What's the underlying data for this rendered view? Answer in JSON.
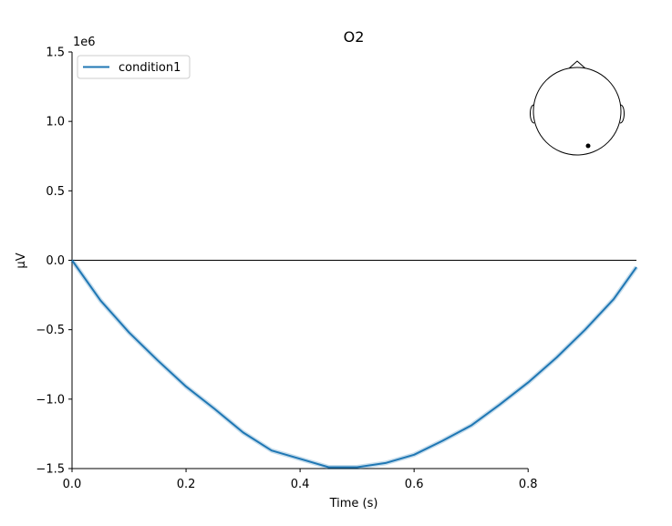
{
  "chart_data": {
    "type": "line",
    "title": "O2",
    "xlabel": "Time (s)",
    "ylabel": "µV",
    "y_offset_label": "1e6",
    "xlim": [
      0.0,
      0.99
    ],
    "ylim": [
      -1.5,
      1.5
    ],
    "xticks": [
      0.0,
      0.2,
      0.4,
      0.6,
      0.8
    ],
    "xtick_labels": [
      "0.0",
      "0.2",
      "0.4",
      "0.6",
      "0.8"
    ],
    "yticks": [
      1.5,
      1.0,
      0.5,
      0.0,
      -0.5,
      -1.0,
      -1.5
    ],
    "ytick_labels": [
      "1.5",
      "1.0",
      "0.5",
      "0.0",
      "−0.5",
      "−1.0",
      "−1.5"
    ],
    "legend_position": "top-left",
    "series": [
      {
        "name": "condition1",
        "color": "#1f77b4",
        "x": [
          0.0,
          0.05,
          0.1,
          0.15,
          0.2,
          0.25,
          0.3,
          0.35,
          0.4,
          0.45,
          0.5,
          0.55,
          0.6,
          0.65,
          0.7,
          0.75,
          0.8,
          0.85,
          0.9,
          0.95,
          0.99
        ],
        "y": [
          0.0,
          -0.29,
          -0.52,
          -0.72,
          -0.91,
          -1.07,
          -1.24,
          -1.37,
          -1.43,
          -1.49,
          -1.49,
          -1.46,
          -1.4,
          -1.3,
          -1.19,
          -1.04,
          -0.88,
          -0.7,
          -0.5,
          -0.28,
          -0.05
        ]
      }
    ],
    "head_inset": {
      "sensor": "O2",
      "sensor_color": "#000000"
    }
  }
}
